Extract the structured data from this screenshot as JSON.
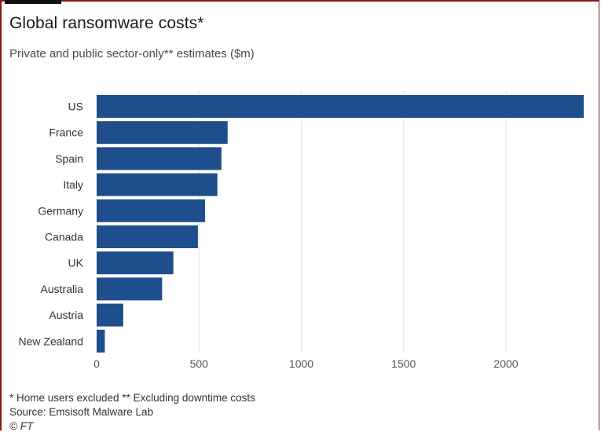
{
  "title": "Global ransomware costs*",
  "subtitle": "Private and public sector-only** estimates ($m)",
  "footnote": "* Home users excluded ** Excluding downtime costs",
  "source": "Source: Emsisoft Malware Lab",
  "copyright": "© FT",
  "colors": {
    "bar": "#1f4e8c",
    "grid": "#e3e3e3",
    "tick_text": "#555555",
    "label_text": "#333333",
    "frame": "#8b1a1a"
  },
  "chart_data": {
    "type": "bar",
    "orientation": "horizontal",
    "title": "Global ransomware costs*",
    "subtitle": "Private and public sector-only** estimates ($m)",
    "categories": [
      "US",
      "France",
      "Spain",
      "Italy",
      "Germany",
      "Canada",
      "UK",
      "Australia",
      "Austria",
      "New Zealand"
    ],
    "values": [
      2380,
      640,
      610,
      590,
      530,
      495,
      375,
      320,
      130,
      40
    ],
    "xlim": [
      0,
      2380
    ],
    "xticks": [
      0,
      500,
      1000,
      1500,
      2000
    ],
    "grid": true,
    "legend": "none"
  }
}
